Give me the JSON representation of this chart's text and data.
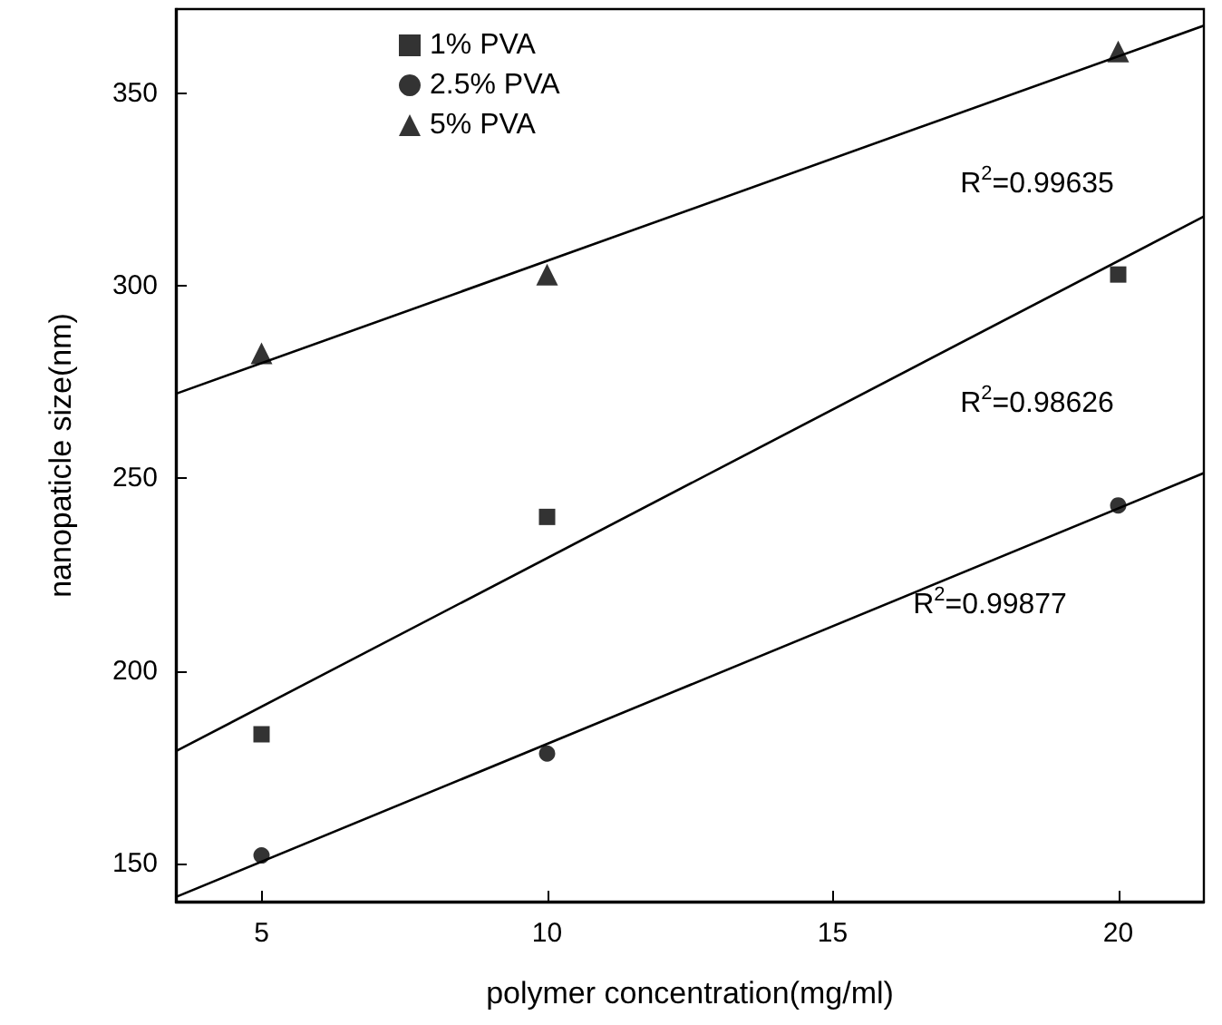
{
  "chart_data": {
    "type": "scatter",
    "xlabel": "polymer concentration(mg/ml)",
    "ylabel": "nanopaticle size(nm)",
    "xlim": [
      3.5,
      21.5
    ],
    "ylim": [
      140,
      372
    ],
    "xticks": [
      5,
      10,
      15,
      20
    ],
    "yticks": [
      150,
      200,
      250,
      300,
      350
    ],
    "grid": false,
    "legend": "top left",
    "series": [
      {
        "name": "1% PVA",
        "color": "#000000",
        "marker": "square",
        "x": [
          5,
          10,
          20
        ],
        "values": [
          183.5,
          240,
          303
        ]
      },
      {
        "name": "2.5% PVA",
        "color": "#000000",
        "marker": "circle",
        "x": [
          5,
          10,
          20
        ],
        "values": [
          152,
          178.5,
          243
        ]
      },
      {
        "name": "5% PVA",
        "color": "#000000",
        "marker": "triangle",
        "x": [
          5,
          10,
          20
        ],
        "values": [
          282.5,
          303,
          361
        ]
      },
      {
        "type": "line",
        "color": "#000000",
        "marker": "none",
        "x": [
          3.5,
          21.5
        ],
        "values": [
          272,
          367.7
        ]
      },
      {
        "type": "line",
        "color": "#000000",
        "marker": "none",
        "x": [
          3.5,
          21.5
        ],
        "values": [
          179.1,
          318.1
        ]
      },
      {
        "type": "line",
        "color": "#000000",
        "marker": "none",
        "x": [
          3.5,
          21.5
        ],
        "values": [
          141.2,
          251.4
        ]
      }
    ],
    "annotations": [
      "R$^{2}$=0.99635",
      "R$^{2}$=0.98626",
      "R$^{2}$=0.99877"
    ]
  }
}
